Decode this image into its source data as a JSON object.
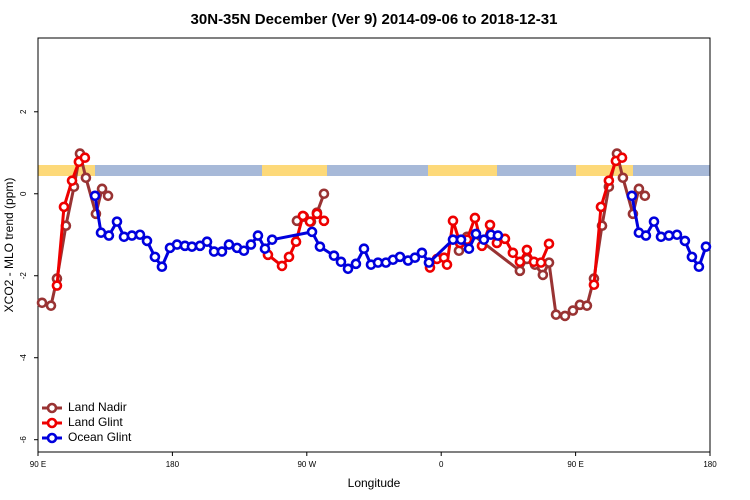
{
  "chart_data": {
    "type": "line",
    "title": "30N-35N December (Ver 9)   2014-09-06 to 2018-12-31",
    "x_label": "Longitude",
    "y_label": "XCO2 - MLO trend (ppm)",
    "xlim": [
      90,
      540
    ],
    "ylim": [
      -6.3,
      3.8
    ],
    "xticks": [
      {
        "value": 90,
        "label": "90 E"
      },
      {
        "value": 180,
        "label": "180"
      },
      {
        "value": 270,
        "label": "90 W"
      },
      {
        "value": 360,
        "label": "0"
      },
      {
        "value": 450,
        "label": "90 E"
      },
      {
        "value": 540,
        "label": "180"
      }
    ],
    "yticks": [
      -6,
      -4,
      -2,
      0,
      2
    ],
    "legend": "bottom-left",
    "series": [
      {
        "name": "Land Nadir",
        "color": "#993333",
        "x": [
          92.7,
          98.7,
          102.7,
          108.7,
          114.1,
          118.1,
          122.1,
          128.8,
          132.9,
          136.9,
          null,
          263.4,
          268.1,
          272.8,
          276.8,
          281.5,
          null,
          371.9,
          377.3,
          381.3,
          412.7,
          417.4,
          422.8,
          428.1,
          432.2,
          436.9,
          442.9,
          448.2,
          452.9,
          457.6,
          462.3,
          467.7,
          472.3,
          477.7,
          481.7,
          488.4,
          492.4,
          496.4
        ],
        "values": [
          -2.66,
          -2.73,
          -2.07,
          -0.78,
          0.17,
          0.98,
          0.39,
          -0.49,
          0.12,
          -0.05,
          null,
          -0.66,
          -0.56,
          -0.68,
          -0.46,
          0.0,
          null,
          -1.39,
          -1.05,
          -1.0,
          -1.88,
          -1.59,
          -1.73,
          -1.98,
          -1.68,
          -2.95,
          -2.98,
          -2.85,
          -2.71,
          -2.73,
          -2.07,
          -0.78,
          0.17,
          0.98,
          0.39,
          -0.49,
          0.12,
          -0.05
        ]
      },
      {
        "name": "Land Glint",
        "color": "#ee0000",
        "x": [
          102.7,
          107.4,
          112.8,
          117.4,
          121.4,
          null,
          244.0,
          253.4,
          258.1,
          262.8,
          267.4,
          272.1,
          276.8,
          281.5,
          null,
          352.5,
          357.2,
          361.9,
          363.9,
          367.9,
          372.6,
          377.3,
          382.6,
          387.3,
          392.7,
          397.3,
          402.7,
          408.0,
          412.7,
          417.4,
          422.1,
          426.8,
          432.2,
          null,
          462.3,
          467.0,
          472.3,
          477.0,
          481.1
        ],
        "values": [
          -2.24,
          -0.32,
          0.32,
          0.78,
          0.88,
          null,
          -1.49,
          -1.76,
          -1.54,
          -1.17,
          -0.54,
          -0.68,
          -0.49,
          -0.66,
          null,
          -1.8,
          -1.59,
          -1.56,
          -1.73,
          -0.66,
          -1.2,
          -1.12,
          -0.59,
          -1.27,
          -0.76,
          -1.2,
          -1.1,
          -1.44,
          -1.66,
          -1.37,
          -1.66,
          -1.68,
          -1.22,
          null,
          -2.22,
          -0.32,
          0.32,
          0.8,
          0.88
        ]
      },
      {
        "name": "Ocean Glint",
        "color": "#0000dd",
        "x": [
          128.2,
          132.2,
          137.5,
          142.9,
          147.6,
          152.9,
          158.3,
          163.0,
          168.3,
          173.0,
          178.4,
          183.1,
          188.4,
          193.1,
          198.5,
          203.2,
          207.9,
          213.2,
          217.9,
          223.3,
          227.9,
          232.6,
          237.3,
          242.0,
          246.8,
          273.5,
          278.8,
          288.2,
          292.9,
          297.6,
          302.9,
          308.3,
          313.0,
          317.7,
          323.0,
          327.7,
          332.4,
          337.8,
          342.4,
          347.1,
          351.8,
          367.9,
          373.3,
          378.6,
          383.3,
          388.6,
          393.3,
          398.0,
          null,
          487.7,
          492.4,
          497.1,
          502.5,
          507.2,
          512.5,
          517.9,
          523.2,
          527.9,
          532.6,
          537.3
        ],
        "values": [
          -0.05,
          -0.95,
          -1.02,
          -0.68,
          -1.05,
          -1.02,
          -1.0,
          -1.15,
          -1.54,
          -1.78,
          -1.32,
          -1.24,
          -1.27,
          -1.29,
          -1.27,
          -1.17,
          -1.41,
          -1.41,
          -1.24,
          -1.32,
          -1.39,
          -1.24,
          -1.02,
          -1.34,
          -1.12,
          -0.93,
          -1.29,
          -1.51,
          -1.66,
          -1.83,
          -1.71,
          -1.34,
          -1.73,
          -1.68,
          -1.68,
          -1.61,
          -1.54,
          -1.63,
          -1.56,
          -1.44,
          -1.68,
          -1.12,
          -1.12,
          -1.34,
          -0.98,
          -1.12,
          -1.0,
          -1.02,
          null,
          -0.05,
          -0.95,
          -1.02,
          -0.68,
          -1.05,
          -1.02,
          -1.0,
          -1.15,
          -1.54,
          -1.78,
          -1.29
        ]
      }
    ]
  }
}
